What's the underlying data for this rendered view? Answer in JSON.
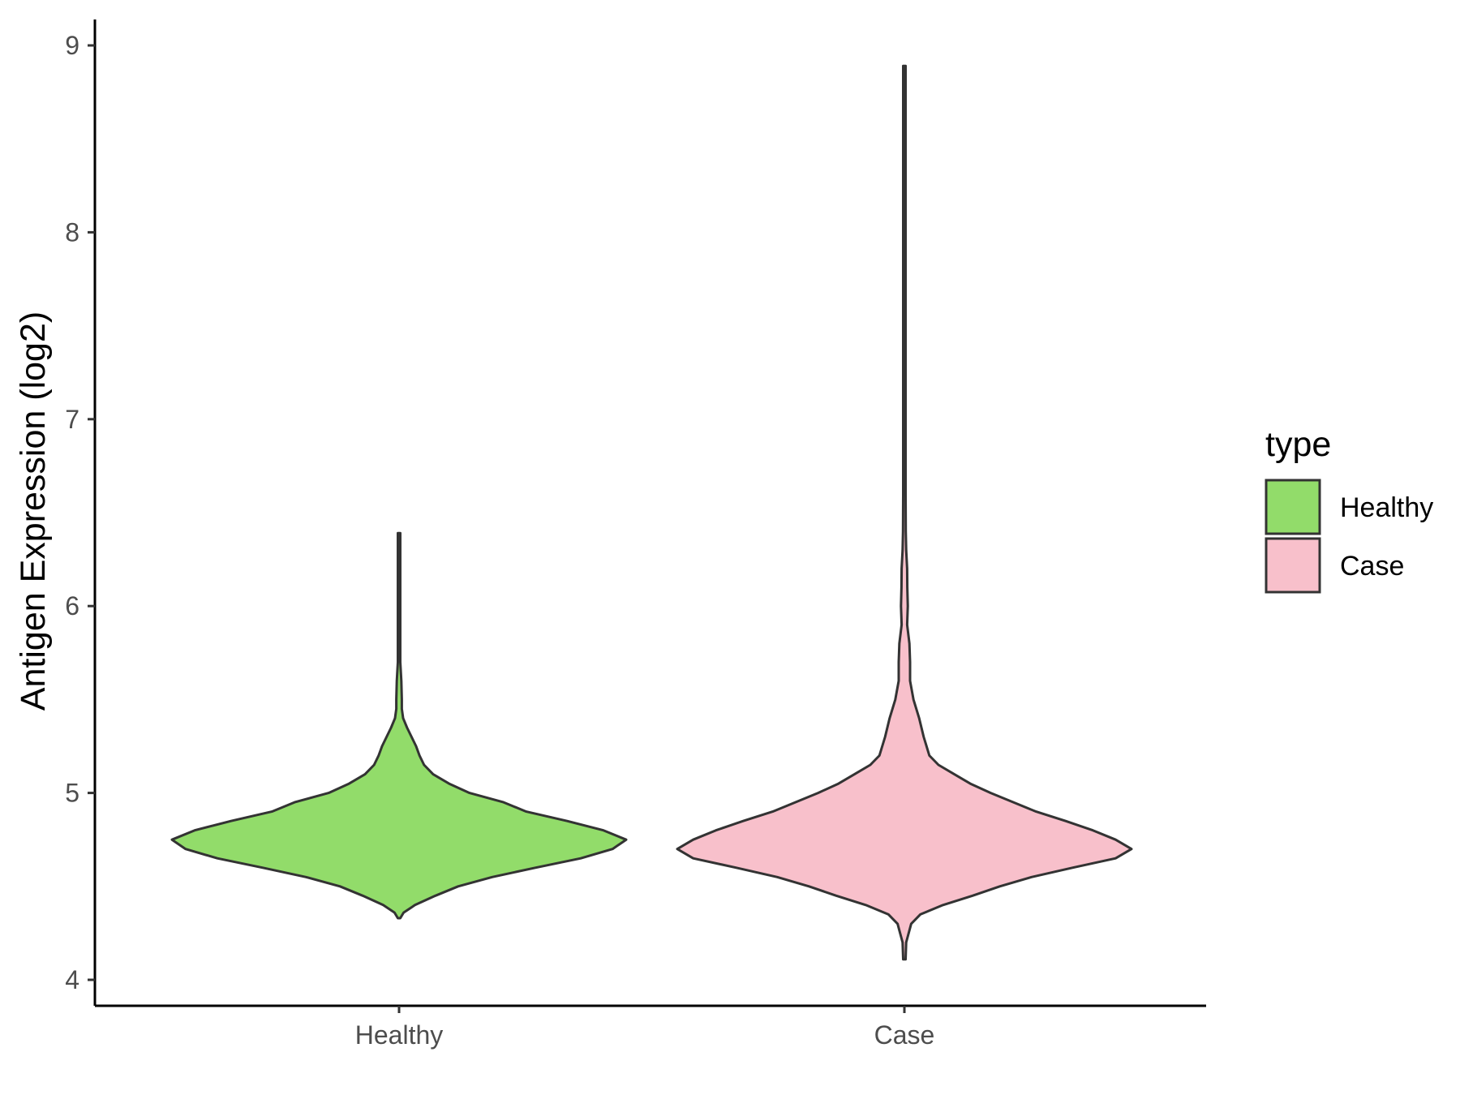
{
  "chart_data": {
    "type": "violin",
    "title": "",
    "xlabel": "",
    "ylabel": "Antigen Expression (log2)",
    "ylim": [
      3.95,
      9.15
    ],
    "yticks": [
      4,
      5,
      6,
      7,
      8,
      9
    ],
    "categories": [
      "Healthy",
      "Case"
    ],
    "grid": false,
    "legend": {
      "title": "type",
      "position": "right",
      "entries": [
        "Healthy",
        "Case"
      ]
    },
    "series": [
      {
        "name": "Healthy",
        "color": "#92dc6a",
        "min": 4.33,
        "max": 6.39,
        "density_profile": [
          [
            4.33,
            0.005
          ],
          [
            4.36,
            0.02
          ],
          [
            4.4,
            0.07
          ],
          [
            4.45,
            0.16
          ],
          [
            4.5,
            0.26
          ],
          [
            4.55,
            0.41
          ],
          [
            4.6,
            0.6
          ],
          [
            4.65,
            0.8
          ],
          [
            4.7,
            0.94
          ],
          [
            4.75,
            1.0
          ],
          [
            4.8,
            0.9
          ],
          [
            4.85,
            0.74
          ],
          [
            4.9,
            0.56
          ],
          [
            4.95,
            0.46
          ],
          [
            5.0,
            0.31
          ],
          [
            5.05,
            0.22
          ],
          [
            5.1,
            0.15
          ],
          [
            5.15,
            0.11
          ],
          [
            5.2,
            0.09
          ],
          [
            5.25,
            0.075
          ],
          [
            5.3,
            0.055
          ],
          [
            5.35,
            0.035
          ],
          [
            5.4,
            0.018
          ],
          [
            5.45,
            0.012
          ],
          [
            5.5,
            0.012
          ],
          [
            5.6,
            0.01
          ],
          [
            5.7,
            0.004
          ],
          [
            5.8,
            0.003
          ],
          [
            6.0,
            0.003
          ],
          [
            6.2,
            0.004
          ],
          [
            6.3,
            0.005
          ],
          [
            6.39,
            0.005
          ]
        ]
      },
      {
        "name": "Case",
        "color": "#f8c0cb",
        "min": 4.11,
        "max": 8.89,
        "density_profile": [
          [
            4.11,
            0.004
          ],
          [
            4.2,
            0.008
          ],
          [
            4.3,
            0.03
          ],
          [
            4.35,
            0.07
          ],
          [
            4.4,
            0.17
          ],
          [
            4.45,
            0.3
          ],
          [
            4.5,
            0.42
          ],
          [
            4.55,
            0.56
          ],
          [
            4.6,
            0.74
          ],
          [
            4.65,
            0.93
          ],
          [
            4.7,
            1.0
          ],
          [
            4.75,
            0.93
          ],
          [
            4.8,
            0.83
          ],
          [
            4.85,
            0.71
          ],
          [
            4.9,
            0.58
          ],
          [
            4.95,
            0.48
          ],
          [
            5.0,
            0.38
          ],
          [
            5.05,
            0.29
          ],
          [
            5.1,
            0.22
          ],
          [
            5.15,
            0.15
          ],
          [
            5.2,
            0.11
          ],
          [
            5.3,
            0.085
          ],
          [
            5.4,
            0.065
          ],
          [
            5.5,
            0.04
          ],
          [
            5.6,
            0.025
          ],
          [
            5.7,
            0.025
          ],
          [
            5.8,
            0.022
          ],
          [
            5.9,
            0.012
          ],
          [
            6.0,
            0.015
          ],
          [
            6.1,
            0.013
          ],
          [
            6.2,
            0.012
          ],
          [
            6.3,
            0.008
          ],
          [
            6.4,
            0.006
          ],
          [
            6.6,
            0.004
          ],
          [
            6.8,
            0.005
          ],
          [
            7.0,
            0.004
          ],
          [
            7.2,
            0.003
          ],
          [
            7.5,
            0.002
          ],
          [
            8.0,
            0.002
          ],
          [
            8.3,
            0.003
          ],
          [
            8.6,
            0.002
          ],
          [
            8.89,
            0.002
          ]
        ]
      }
    ]
  }
}
